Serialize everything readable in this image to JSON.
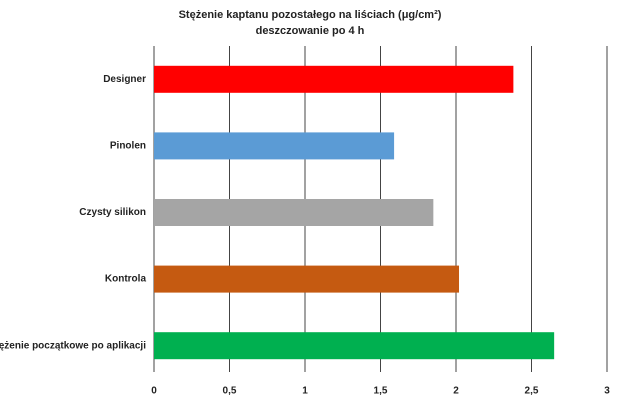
{
  "chart_data": {
    "type": "barh",
    "title": "Stężenie kaptanu pozostałego na liściach (μg/cm²)",
    "subtitle": "deszczowanie po 4 h",
    "categories": [
      "Designer",
      "Pinolen",
      "Czysty silikon",
      "Kontrola",
      "Stężenie początkowe po aplikacji"
    ],
    "values": [
      2.38,
      1.59,
      1.85,
      2.02,
      2.65
    ],
    "colors": [
      "#ff0000",
      "#5b9bd5",
      "#a5a5a5",
      "#c55a11",
      "#00b050"
    ],
    "xlim": [
      0,
      3
    ],
    "xticks": [
      0,
      {
        "value": 0.5,
        "label": "0,5"
      },
      1,
      {
        "value": 1.5,
        "label": "1,5"
      },
      2,
      {
        "value": 2.5,
        "label": "2,5"
      },
      3
    ],
    "grid": true
  }
}
